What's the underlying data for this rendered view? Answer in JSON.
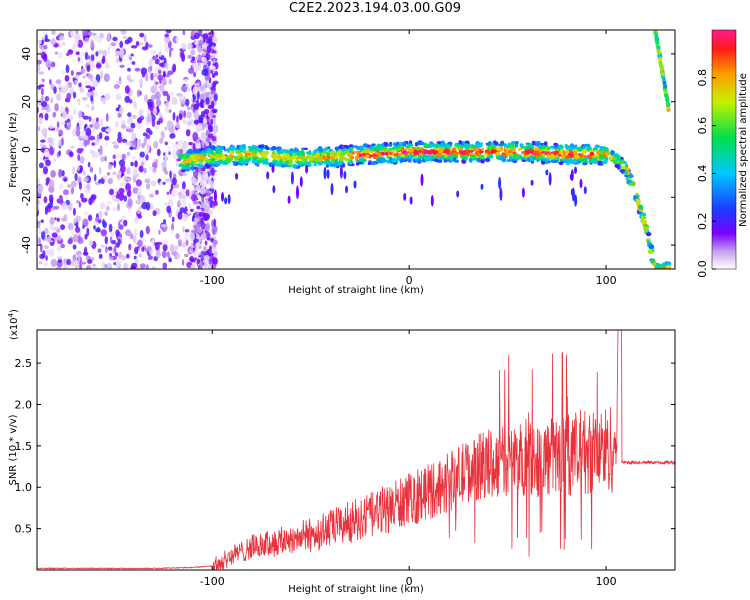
{
  "title": "C2E2.2023.194.03.00.G09",
  "chart_data": [
    {
      "type": "heatmap",
      "xlabel": "Height of straight line (km)",
      "ylabel": "Frequency (Hz)",
      "xlim": [
        -189,
        135
      ],
      "ylim": [
        -50,
        50
      ],
      "xticks": [
        -100,
        0,
        100
      ],
      "yticks": [
        -40,
        -20,
        0,
        20,
        40
      ],
      "colorbar": {
        "label": "Normalized spectral amplitude",
        "range": [
          0,
          1
        ],
        "ticks": [
          "0.0",
          "0.2",
          "0.4",
          "0.6",
          "0.8"
        ]
      },
      "frequency_track": {
        "x_km": [
          -115,
          -100,
          -80,
          -60,
          -40,
          -20,
          0,
          20,
          40,
          60,
          80,
          95,
          100,
          105,
          110,
          115,
          120,
          125,
          130
        ],
        "frequency_hz": [
          -5,
          -3,
          -2,
          -4,
          -3,
          -2,
          -1,
          -1,
          -1,
          -1,
          -2,
          -2,
          -2,
          -4,
          -8,
          -18,
          -32,
          -50,
          -50
        ]
      },
      "upper_branch": {
        "x_km": [
          125,
          132
        ],
        "frequency_hz": [
          50,
          16
        ]
      }
    },
    {
      "type": "line",
      "xlabel": "Height of straight line (km)",
      "ylabel": "SNR (10 * v/v)",
      "scale_label": "(x10",
      "scale_exponent": "4",
      "xlim": [
        -189,
        135
      ],
      "ylim": [
        0,
        2.9
      ],
      "xticks": [
        -100,
        0,
        100
      ],
      "yticks": [
        0.5,
        1.0,
        1.5,
        2.0,
        2.5
      ],
      "ytick_labels": [
        "0.5",
        "1.0",
        "1.5",
        "2.0",
        "2.5"
      ],
      "series": [
        {
          "color": "#e8313a",
          "x_km": [
            -189,
            -160,
            -130,
            -110,
            -100,
            -95,
            -90,
            -85,
            -80,
            -70,
            -60,
            -50,
            -40,
            -30,
            -20,
            -10,
            0,
            10,
            20,
            30,
            40,
            50,
            60,
            70,
            80,
            90,
            100,
            105,
            108,
            110,
            120,
            135
          ],
          "snr_x1e4": [
            0.02,
            0.02,
            0.02,
            0.03,
            0.05,
            0.1,
            0.18,
            0.22,
            0.28,
            0.32,
            0.38,
            0.42,
            0.5,
            0.58,
            0.65,
            0.75,
            0.85,
            0.95,
            1.05,
            1.2,
            1.28,
            1.32,
            1.35,
            1.35,
            1.4,
            1.42,
            1.45,
            1.5,
            2.9,
            1.3,
            1.3,
            1.3
          ]
        }
      ]
    }
  ]
}
